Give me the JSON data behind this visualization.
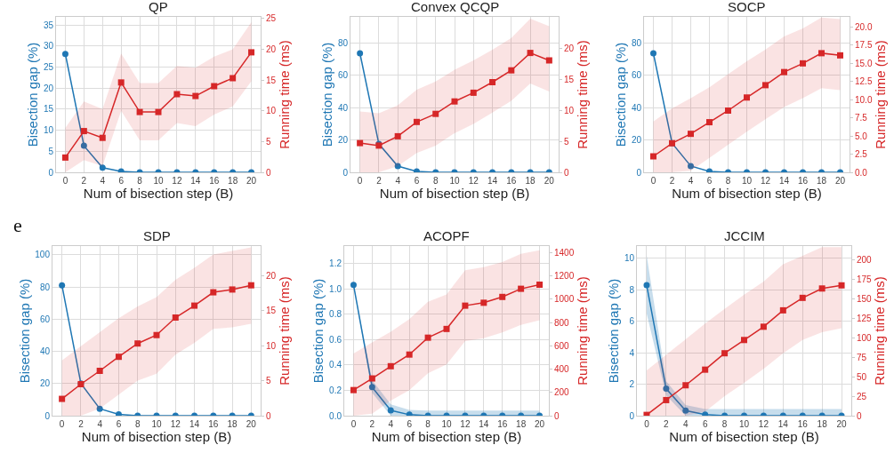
{
  "chart_data": [
    {
      "type": "line",
      "title": "QP",
      "xlabel": "Num of bisection step (B)",
      "ylabel": "Bisection gap (%)",
      "y2label": "Running time (ms)",
      "grid": true,
      "x": [
        0,
        2,
        4,
        6,
        8,
        10,
        12,
        14,
        16,
        18,
        20
      ],
      "xlim": [
        -1,
        21
      ],
      "xticks": [
        0,
        2,
        4,
        6,
        8,
        10,
        12,
        14,
        16,
        18,
        20
      ],
      "ylim": [
        0,
        36.9
      ],
      "yticks": [
        0,
        5,
        10,
        15,
        20,
        25,
        30,
        35
      ],
      "y2lim": [
        0,
        25.26
      ],
      "y2ticks": [
        0,
        5,
        10,
        15,
        20,
        25
      ],
      "series": [
        {
          "color": "#1f77b4",
          "marker": "circle",
          "values": [
            28.1,
            6.3,
            1.1,
            0.2,
            0,
            0,
            0,
            0,
            0,
            0,
            0
          ]
        },
        {
          "color": "#d62728",
          "marker": "square",
          "axis": "y2",
          "values": [
            2.4,
            6.7,
            5.6,
            14.6,
            9.8,
            9.8,
            12.7,
            12.4,
            14.0,
            15.3,
            19.5
          ],
          "lower": [
            0,
            2,
            1,
            10,
            5.2,
            5.2,
            8,
            7.5,
            9.4,
            10.7,
            14.8
          ],
          "upper": [
            7.2,
            11.5,
            10.3,
            19.3,
            14.5,
            14.5,
            17.3,
            17.0,
            18.8,
            20.0,
            24.4
          ]
        }
      ]
    },
    {
      "type": "line",
      "title": "Convex QCQP",
      "xlabel": "Num of bisection step (B)",
      "ylabel": "Bisection gap (%)",
      "y2label": "Running time (ms)",
      "grid": true,
      "x": [
        0,
        2,
        4,
        6,
        8,
        10,
        12,
        14,
        16,
        18,
        20
      ],
      "xlim": [
        -1,
        21
      ],
      "xticks": [
        0,
        2,
        4,
        6,
        8,
        10,
        12,
        14,
        16,
        18,
        20
      ],
      "ylim": [
        0,
        96
      ],
      "yticks": [
        0,
        20,
        40,
        60,
        80
      ],
      "y2lim": [
        0,
        25.0
      ],
      "y2ticks": [
        0,
        5,
        10,
        15,
        20
      ],
      "series": [
        {
          "color": "#1f77b4",
          "marker": "circle",
          "values": [
            73.5,
            17.5,
            3.8,
            0.6,
            0,
            0,
            0,
            0,
            0,
            0,
            0
          ]
        },
        {
          "color": "#d62728",
          "marker": "square",
          "axis": "y2",
          "values": [
            4.7,
            4.3,
            5.8,
            8.1,
            9.4,
            11.4,
            12.8,
            14.5,
            16.4,
            19.2,
            18.0
          ],
          "lower": [
            0,
            0,
            1.0,
            3.1,
            4.3,
            6.3,
            7.8,
            9.6,
            11.5,
            14.3,
            13.0
          ],
          "upper": [
            9.8,
            9.5,
            10.8,
            13.3,
            14.6,
            16.5,
            18.0,
            19.7,
            21.6,
            24.7,
            23.5
          ]
        }
      ]
    },
    {
      "type": "line",
      "title": "SOCP",
      "xlabel": "Num of bisection step (B)",
      "ylabel": "Bisection gap (%)",
      "y2label": "Running time (ms)",
      "grid": true,
      "x": [
        0,
        2,
        4,
        6,
        8,
        10,
        12,
        14,
        16,
        18,
        20
      ],
      "xlim": [
        -1,
        21
      ],
      "xticks": [
        0,
        2,
        4,
        6,
        8,
        10,
        12,
        14,
        16,
        18,
        20
      ],
      "ylim": [
        0,
        96
      ],
      "yticks": [
        0,
        20,
        40,
        60,
        80
      ],
      "y2lim": [
        0,
        21.4
      ],
      "y2ticks": [
        {
          "value": 0,
          "label": "0.0"
        },
        2.5,
        {
          "value": 5,
          "label": "5.0"
        },
        7.5,
        {
          "value": 10,
          "label": "10.0"
        },
        12.5,
        {
          "value": 15,
          "label": "15.0"
        },
        17.5,
        {
          "value": 20,
          "label": "20.0"
        }
      ],
      "series": [
        {
          "color": "#1f77b4",
          "marker": "circle",
          "values": [
            73.5,
            18,
            3.9,
            0.6,
            0,
            0,
            0,
            0,
            0,
            0,
            0
          ]
        },
        {
          "color": "#d62728",
          "marker": "square",
          "axis": "y2",
          "values": [
            2.2,
            4.0,
            5.3,
            6.9,
            8.5,
            10.3,
            12.0,
            13.8,
            15.0,
            16.4,
            16.1
          ],
          "lower": [
            0,
            0,
            0.2,
            2.0,
            3.8,
            5.6,
            7.3,
            9.0,
            10.2,
            11.6,
            11.3
          ],
          "upper": [
            7.0,
            8.8,
            10.2,
            11.7,
            13.5,
            15.3,
            16.9,
            18.7,
            19.8,
            21.3,
            21.1
          ]
        }
      ]
    },
    {
      "type": "line",
      "title": "SDP",
      "xlabel": "Num of bisection step (B)",
      "ylabel": "Bisection gap (%)",
      "y2label": "Running time (ms)",
      "grid": true,
      "annotations": [
        "e"
      ],
      "x": [
        0,
        2,
        4,
        6,
        8,
        10,
        12,
        14,
        16,
        18,
        20
      ],
      "xlim": [
        -1,
        21
      ],
      "xticks": [
        0,
        2,
        4,
        6,
        8,
        10,
        12,
        14,
        16,
        18,
        20
      ],
      "ylim": [
        0,
        105.4
      ],
      "yticks": [
        0,
        20,
        40,
        60,
        80,
        100
      ],
      "y2lim": [
        0,
        24.2
      ],
      "y2ticks": [
        0,
        5,
        10,
        15,
        20
      ],
      "series": [
        {
          "color": "#1f77b4",
          "marker": "circle",
          "values": [
            81,
            20,
            4.3,
            0.8,
            0,
            0,
            0,
            0,
            0,
            0,
            0
          ]
        },
        {
          "color": "#d62728",
          "marker": "square",
          "axis": "y2",
          "values": [
            2.4,
            4.5,
            6.4,
            8.4,
            10.3,
            11.5,
            14.0,
            15.7,
            17.6,
            18.0,
            18.6
          ],
          "lower": [
            0,
            0,
            1.0,
            3.0,
            5.0,
            6.0,
            8.7,
            10.4,
            12.4,
            12.6,
            13.1
          ],
          "upper": [
            7.9,
            9.9,
            11.9,
            13.9,
            15.6,
            16.9,
            19.4,
            21.1,
            23.0,
            23.5,
            24.0
          ]
        }
      ]
    },
    {
      "type": "line",
      "title": "ACOPF",
      "xlabel": "Num of bisection step (B)",
      "ylabel": "Bisection gap (%)",
      "y2label": "Running time (ms)",
      "grid": true,
      "x": [
        0,
        2,
        4,
        6,
        8,
        10,
        12,
        14,
        16,
        18,
        20
      ],
      "xlim": [
        -1,
        21
      ],
      "xticks": [
        0,
        2,
        4,
        6,
        8,
        10,
        12,
        14,
        16,
        18,
        20
      ],
      "ylim": [
        0,
        1.337
      ],
      "yticks": [
        {
          "value": 0,
          "label": "0.0"
        },
        0.2,
        0.4,
        0.6,
        0.8,
        {
          "value": 1,
          "label": "1.0"
        },
        1.2
      ],
      "y2lim": [
        0,
        1457
      ],
      "y2ticks": [
        0,
        200,
        400,
        600,
        800,
        1000,
        1200,
        1400
      ],
      "series": [
        {
          "color": "#1f77b4",
          "marker": "circle",
          "values": [
            1.03,
            0.225,
            0.042,
            0.008,
            0,
            0,
            0,
            0,
            0,
            0,
            0
          ],
          "lower": [
            1.03,
            0.18,
            0,
            0,
            0,
            0,
            0,
            0,
            0,
            0,
            0
          ],
          "upper": [
            1.03,
            0.28,
            0.09,
            0.045,
            0.04,
            0.04,
            0.04,
            0.04,
            0.04,
            0.04,
            0.04
          ]
        },
        {
          "color": "#d62728",
          "marker": "square",
          "axis": "y2",
          "values": [
            220,
            320,
            425,
            525,
            670,
            745,
            945,
            970,
            1020,
            1090,
            1125
          ],
          "lower": [
            0,
            17,
            130,
            220,
            365,
            440,
            640,
            665,
            715,
            780,
            820
          ],
          "upper": [
            534,
            630,
            720,
            830,
            978,
            1042,
            1250,
            1275,
            1320,
            1390,
            1420
          ]
        }
      ]
    },
    {
      "type": "line",
      "title": "JCCIM",
      "xlabel": "Num of bisection step (B)",
      "ylabel": "Bisection gap (%)",
      "y2label": "Running time (ms)",
      "grid": true,
      "x": [
        0,
        2,
        4,
        6,
        8,
        10,
        12,
        14,
        16,
        18,
        20
      ],
      "xlim": [
        -1,
        21
      ],
      "xticks": [
        0,
        2,
        4,
        6,
        8,
        10,
        12,
        14,
        16,
        18,
        20
      ],
      "ylim": [
        0,
        10.79
      ],
      "yticks": [
        0,
        2,
        4,
        6,
        8,
        10
      ],
      "y2lim": [
        0,
        217.4
      ],
      "y2ticks": [
        0,
        25,
        50,
        75,
        100,
        125,
        150,
        175,
        200
      ],
      "series": [
        {
          "color": "#1f77b4",
          "marker": "circle",
          "values": [
            8.3,
            1.72,
            0.32,
            0.07,
            0,
            0,
            0,
            0,
            0,
            0,
            0
          ],
          "lower": [
            6.5,
            1.3,
            0,
            0,
            0,
            0,
            0,
            0,
            0,
            0,
            0
          ],
          "upper": [
            10.2,
            2.2,
            0.68,
            0.42,
            0.42,
            0.42,
            0.42,
            0.42,
            0.42,
            0.42,
            0.42
          ]
        },
        {
          "color": "#d62728",
          "marker": "square",
          "axis": "y2",
          "values": [
            1,
            20,
            39,
            59,
            80,
            97,
            114,
            135,
            151,
            163,
            167
          ],
          "lower": [
            0,
            0,
            0,
            5,
            25,
            42,
            60,
            80,
            97,
            107,
            112
          ],
          "upper": [
            58,
            78,
            98,
            118,
            137,
            155,
            172,
            194,
            205,
            216,
            216
          ]
        }
      ]
    }
  ]
}
